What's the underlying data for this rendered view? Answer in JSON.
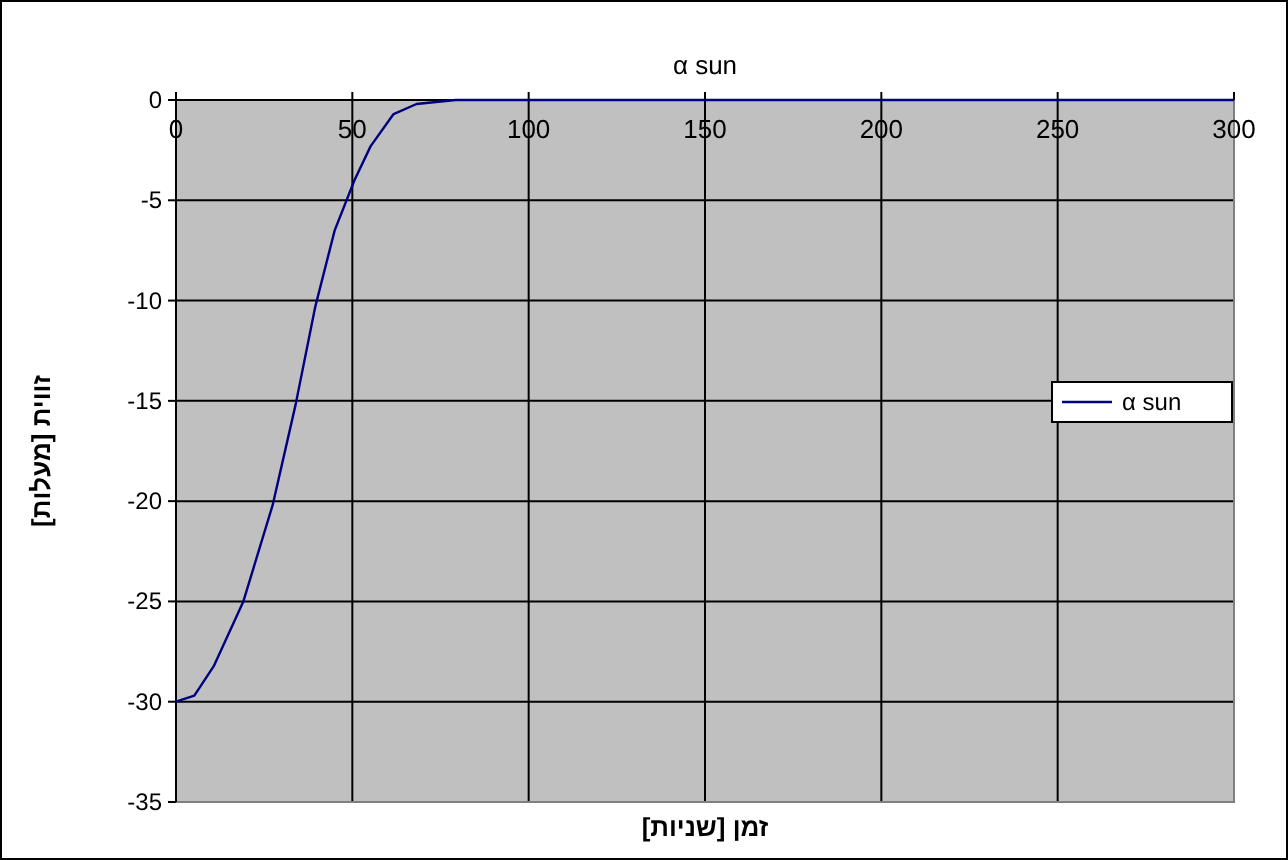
{
  "chart_data": {
    "type": "line",
    "title": "α sun",
    "xlabel": "זמן [שניות]",
    "ylabel": "זווית [מעלות]",
    "x": [
      0,
      5.2,
      10.8,
      19.1,
      27.4,
      33.9,
      39.5,
      45,
      50.6,
      55.2,
      61.7,
      68.2,
      79.3,
      150,
      300
    ],
    "series": [
      {
        "name": "α sun",
        "color": "#000080",
        "values": [
          -30,
          -29.7,
          -28.2,
          -25,
          -20.2,
          -15.2,
          -10.3,
          -6.5,
          -4,
          -2.3,
          -0.7,
          -0.2,
          0,
          0,
          0
        ]
      }
    ],
    "xlim": [
      0,
      300
    ],
    "ylim": [
      -35,
      0
    ],
    "xticks": [
      0,
      50,
      100,
      150,
      200,
      250,
      300
    ],
    "yticks": [
      -35,
      -30,
      -25,
      -20,
      -15,
      -10,
      -5,
      0
    ],
    "grid": true,
    "legend": "right",
    "marker": "none",
    "line_style": "solid"
  }
}
